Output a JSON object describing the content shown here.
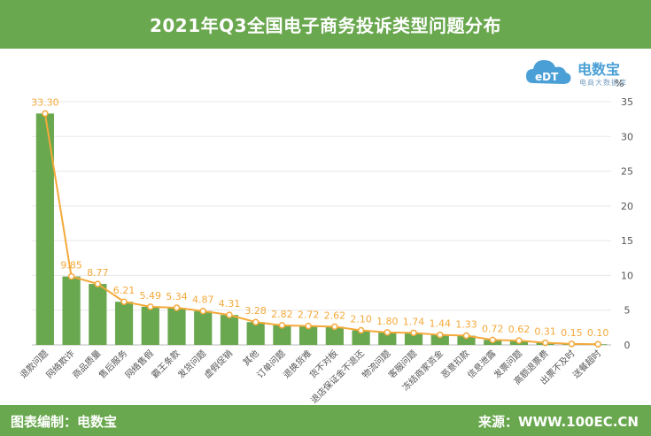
{
  "header": {
    "title": "2021年Q3全国电子商务投诉类型问题分布"
  },
  "logo": {
    "name": "电数宝",
    "sub": "电商大数据库",
    "icon": "cloud-logo-icon"
  },
  "footer": {
    "left": "图表编制：电数宝",
    "right": "来源：WWW.100EC.CN"
  },
  "colors": {
    "bar": "#6aa84f",
    "line": "#f4a93a",
    "label": "#f4a93a",
    "brand": "#6aa84f"
  },
  "chart_data": {
    "type": "bar",
    "unit": "%",
    "categories": [
      "退款问题",
      "网络欺诈",
      "商品质量",
      "售后服务",
      "网络售假",
      "霸王条款",
      "发货问题",
      "虚假促销",
      "其他",
      "订单问题",
      "退换货难",
      "货不对板",
      "退店保证金不退还",
      "物流问题",
      "客服问题",
      "冻结商家资金",
      "恶意扣款",
      "信息泄露",
      "发票问题",
      "高额退票费",
      "出票不及时",
      "送餐超时"
    ],
    "values": [
      33.3,
      9.85,
      8.77,
      6.21,
      5.49,
      5.34,
      4.87,
      4.31,
      3.28,
      2.82,
      2.72,
      2.62,
      2.1,
      1.8,
      1.74,
      1.44,
      1.33,
      0.72,
      0.62,
      0.31,
      0.15,
      0.1
    ],
    "labels": [
      "33.30",
      "9.85",
      "8.77",
      "6.21",
      "5.49",
      "5.34",
      "4.87",
      "4.31",
      "3.28",
      "2.82",
      "2.72",
      "2.62",
      "2.10",
      "1.80",
      "1.74",
      "1.44",
      "1.33",
      "0.72",
      "0.62",
      "0.31",
      "0.15",
      "0.10"
    ],
    "yticks": [
      0,
      5,
      10,
      15,
      20,
      25,
      30,
      35
    ],
    "ylim": [
      0,
      35
    ],
    "grid": true,
    "axis_side": "right",
    "overlay_line": true
  }
}
